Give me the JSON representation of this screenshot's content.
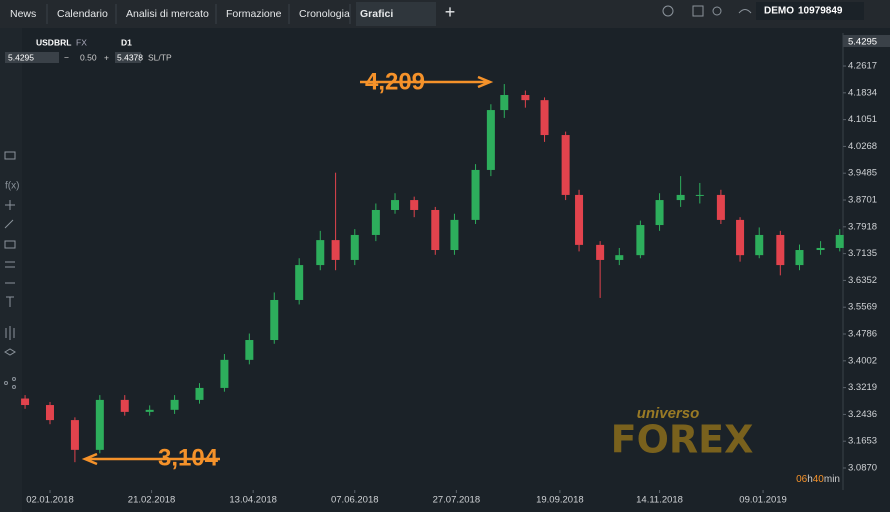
{
  "ui": {
    "tabs": [
      "News",
      "Calendario",
      "Analisi di mercato",
      "Formazione",
      "Cronologia",
      "Grafici"
    ],
    "add_tab": "+",
    "account_mode": "DEMO",
    "account_number": "10979849",
    "symbol": "USDBRL",
    "market": "FX",
    "timeframe": "D1",
    "bid": "5.4295",
    "minus": "−",
    "volume": "0.50",
    "plus": "+",
    "ask": "5.4378",
    "sltp": "SL/TP",
    "price_tag": "5.4295",
    "countdown_hours": "06",
    "countdown_h": "h",
    "countdown_minutes": "40",
    "countdown_min": "min",
    "logo_top": "universo",
    "logo_main": "FOREX"
  },
  "chart_data": {
    "type": "candlestick",
    "annotations": [
      "4,209",
      "3,104"
    ],
    "x": [
      -13,
      0,
      13,
      26,
      39,
      52,
      65,
      78,
      91,
      104,
      117,
      130,
      141,
      149,
      159,
      170,
      180,
      190,
      201,
      211,
      222,
      230,
      237,
      248,
      258,
      269,
      276,
      287,
      297,
      308,
      318,
      329,
      339,
      350,
      360,
      370,
      381,
      391,
      402,
      412
    ],
    "open": [
      3.29,
      3.271,
      3.227,
      3.14,
      3.286,
      3.251,
      3.257,
      3.286,
      3.321,
      3.403,
      3.461,
      3.578,
      3.68,
      3.753,
      3.695,
      3.768,
      3.841,
      3.87,
      3.841,
      3.724,
      3.812,
      3.958,
      4.133,
      4.177,
      4.162,
      4.06,
      3.885,
      3.739,
      3.695,
      3.709,
      3.797,
      3.87,
      3.885,
      3.885,
      3.812,
      3.709,
      3.768,
      3.68,
      3.724,
      3.73
    ],
    "high": [
      3.3,
      3.28,
      3.235,
      3.3,
      3.3,
      3.27,
      3.3,
      3.335,
      3.42,
      3.48,
      3.6,
      3.7,
      3.78,
      3.95,
      3.785,
      3.86,
      3.89,
      3.88,
      3.85,
      3.83,
      3.975,
      4.15,
      4.209,
      4.19,
      4.17,
      4.07,
      3.9,
      3.75,
      3.73,
      3.81,
      3.89,
      3.94,
      3.92,
      3.9,
      3.82,
      3.79,
      3.78,
      3.74,
      3.75,
      3.785
    ],
    "low": [
      3.26,
      3.215,
      3.104,
      3.13,
      3.24,
      3.24,
      3.245,
      3.275,
      3.31,
      3.39,
      3.45,
      3.565,
      3.665,
      3.665,
      3.68,
      3.75,
      3.83,
      3.82,
      3.71,
      3.71,
      3.8,
      3.94,
      4.11,
      4.14,
      4.04,
      3.87,
      3.72,
      3.584,
      3.68,
      3.7,
      3.78,
      3.85,
      3.86,
      3.8,
      3.69,
      3.7,
      3.65,
      3.665,
      3.71,
      3.72
    ],
    "close": [
      3.271,
      3.227,
      3.14,
      3.286,
      3.251,
      3.257,
      3.286,
      3.321,
      3.403,
      3.461,
      3.578,
      3.68,
      3.753,
      3.695,
      3.768,
      3.841,
      3.87,
      3.841,
      3.724,
      3.812,
      3.958,
      4.133,
      4.177,
      4.162,
      4.06,
      3.885,
      3.739,
      3.695,
      3.709,
      3.797,
      3.87,
      3.885,
      3.885,
      3.812,
      3.709,
      3.768,
      3.68,
      3.724,
      3.73,
      3.768
    ],
    "up_color": "#2dae5c",
    "down_color": "#e2434d",
    "xlim": [
      -14.6,
      413.7
    ],
    "xticks": [
      {
        "value": 0,
        "label": "02.01.2018"
      },
      {
        "value": 53,
        "label": "21.02.2018"
      },
      {
        "value": 106,
        "label": "13.04.2018"
      },
      {
        "value": 159,
        "label": "07.06.2018"
      },
      {
        "value": 212,
        "label": "27.07.2018"
      },
      {
        "value": 266,
        "label": "19.09.2018"
      },
      {
        "value": 318,
        "label": "14.11.2018"
      },
      {
        "value": 372,
        "label": "09.01.2019"
      }
    ],
    "ylim": [
      3.0227,
      4.3582
    ],
    "yticks": [
      4.2617,
      4.1834,
      4.1051,
      4.0268,
      3.9485,
      3.8701,
      3.7918,
      3.7135,
      3.6352,
      3.5569,
      3.4786,
      3.4002,
      3.3219,
      3.2436,
      3.1653,
      {
        "value": 3.087,
        "label": "3.0870"
      }
    ]
  }
}
